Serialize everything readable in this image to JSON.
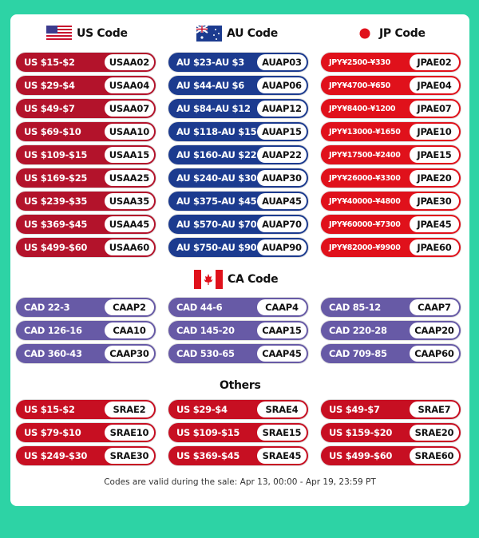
{
  "colors": {
    "background": "#2dd3a5",
    "us": "#b3132b",
    "au": "#1c3b8f",
    "jp": "#e0111b",
    "ca": "#675aa6",
    "others": "#c70f22"
  },
  "headers": {
    "us": "US Code",
    "au": "AU Code",
    "jp": "JP Code",
    "ca": "CA Code",
    "others": "Others"
  },
  "us": [
    [
      "US $15-$2",
      "USAA02"
    ],
    [
      "US $29-$4",
      "USAA04"
    ],
    [
      "US $49-$7",
      "USAA07"
    ],
    [
      "US $69-$10",
      "USAA10"
    ],
    [
      "US $109-$15",
      "USAA15"
    ],
    [
      "US $169-$25",
      "USAA25"
    ],
    [
      "US $239-$35",
      "USAA35"
    ],
    [
      "US $369-$45",
      "USAA45"
    ],
    [
      "US $499-$60",
      "USAA60"
    ]
  ],
  "au": [
    [
      "AU $23-AU $3",
      "AUAP03"
    ],
    [
      "AU $44-AU $6",
      "AUAP06"
    ],
    [
      "AU $84-AU $12",
      "AUAP12"
    ],
    [
      "AU $118-AU $15",
      "AUAP15"
    ],
    [
      "AU $160-AU $22",
      "AUAP22"
    ],
    [
      "AU $240-AU $30",
      "AUAP30"
    ],
    [
      "AU $375-AU $45",
      "AUAP45"
    ],
    [
      "AU $570-AU $70",
      "AUAP70"
    ],
    [
      "AU $750-AU $90",
      "AUAP90"
    ]
  ],
  "jp": [
    [
      "JPY¥2500-¥330",
      "JPAE02"
    ],
    [
      "JPY¥4700-¥650",
      "JPAE04"
    ],
    [
      "JPY¥8400-¥1200",
      "JPAE07"
    ],
    [
      "JPY¥13000-¥1650",
      "JPAE10"
    ],
    [
      "JPY¥17500-¥2400",
      "JPAE15"
    ],
    [
      "JPY¥26000-¥3300",
      "JPAE20"
    ],
    [
      "JPY¥40000-¥4800",
      "JPAE30"
    ],
    [
      "JPY¥60000-¥7300",
      "JPAE45"
    ],
    [
      "JPY¥82000-¥9900",
      "JPAE60"
    ]
  ],
  "ca": [
    [
      "CAD 22-3",
      "CAAP2"
    ],
    [
      "CAD 44-6",
      "CAAP4"
    ],
    [
      "CAD 85-12",
      "CAAP7"
    ],
    [
      "CAD 126-16",
      "CAA10"
    ],
    [
      "CAD 145-20",
      "CAAP15"
    ],
    [
      "CAD 220-28",
      "CAAP20"
    ],
    [
      "CAD 360-43",
      "CAAP30"
    ],
    [
      "CAD 530-65",
      "CAAP45"
    ],
    [
      "CAD 709-85",
      "CAAP60"
    ]
  ],
  "others": [
    [
      "US $15-$2",
      "SRAE2"
    ],
    [
      "US $29-$4",
      "SRAE4"
    ],
    [
      "US $49-$7",
      "SRAE7"
    ],
    [
      "US $79-$10",
      "SRAE10"
    ],
    [
      "US $109-$15",
      "SRAE15"
    ],
    [
      "US $159-$20",
      "SRAE20"
    ],
    [
      "US $249-$30",
      "SRAE30"
    ],
    [
      "US $369-$45",
      "SRAE45"
    ],
    [
      "US $499-$60",
      "SRAE60"
    ]
  ],
  "footer": "Codes are valid during the sale: Apr 13, 00:00 - Apr 19, 23:59 PT"
}
